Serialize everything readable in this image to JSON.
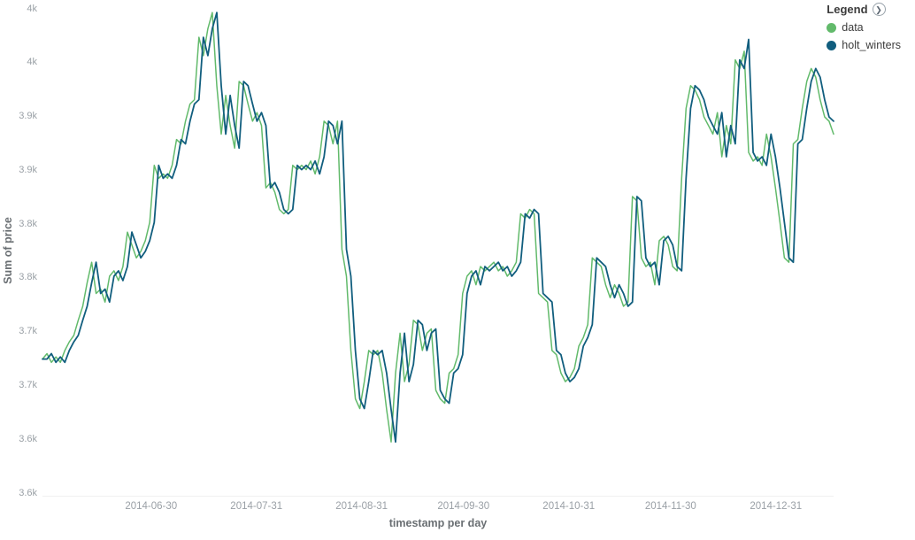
{
  "legend": {
    "title": "Legend",
    "toggle_icon": "❯",
    "items": [
      {
        "label": "data",
        "color": "#62BA6B"
      },
      {
        "label": "holt_winters",
        "color": "#115E7E"
      }
    ]
  },
  "chart_data": {
    "type": "line",
    "title": "",
    "xlabel": "timestamp per day",
    "ylabel": "Sum of price",
    "grid": false,
    "legend_position": "top-right",
    "ylim": [
      3548,
      4007
    ],
    "x_range": {
      "start": "2014-05-29",
      "end": "2015-01-17"
    },
    "x_ticks": [
      "2014-06-30",
      "2014-07-31",
      "2014-08-31",
      "2014-09-30",
      "2014-10-31",
      "2014-11-30",
      "2014-12-31"
    ],
    "y_ticks": [
      {
        "value": 4000,
        "label": "4k"
      },
      {
        "value": 3950,
        "label": "4k"
      },
      {
        "value": 3900,
        "label": "3.9k"
      },
      {
        "value": 3850,
        "label": "3.9k"
      },
      {
        "value": 3800,
        "label": "3.8k"
      },
      {
        "value": 3750,
        "label": "3.8k"
      },
      {
        "value": 3700,
        "label": "3.7k"
      },
      {
        "value": 3650,
        "label": "3.7k"
      },
      {
        "value": 3600,
        "label": "3.6k"
      },
      {
        "value": 3550,
        "label": "3.6k"
      }
    ],
    "series": [
      {
        "name": "data",
        "color": "#62BA6B",
        "stroke_width": 1.5,
        "values": [
          3675,
          3680,
          3672,
          3677,
          3672,
          3683,
          3691,
          3697,
          3711,
          3724,
          3746,
          3765,
          3736,
          3740,
          3728,
          3752,
          3757,
          3748,
          3761,
          3793,
          3781,
          3769,
          3775,
          3785,
          3802,
          3855,
          3843,
          3847,
          3843,
          3855,
          3879,
          3875,
          3896,
          3912,
          3916,
          3974,
          3957,
          3982,
          3997,
          3929,
          3884,
          3920,
          3892,
          3871,
          3933,
          3929,
          3912,
          3896,
          3904,
          3892,
          3834,
          3839,
          3830,
          3814,
          3810,
          3814,
          3855,
          3851,
          3855,
          3851,
          3859,
          3847,
          3863,
          3896,
          3892,
          3875,
          3896,
          3777,
          3752,
          3683,
          3638,
          3629,
          3654,
          3683,
          3679,
          3683,
          3662,
          3628,
          3598,
          3662,
          3699,
          3654,
          3670,
          3711,
          3707,
          3683,
          3699,
          3703,
          3646,
          3638,
          3634,
          3662,
          3666,
          3679,
          3736,
          3752,
          3757,
          3744,
          3761,
          3757,
          3761,
          3765,
          3757,
          3761,
          3752,
          3757,
          3765,
          3810,
          3806,
          3814,
          3810,
          3736,
          3732,
          3728,
          3683,
          3679,
          3662,
          3654,
          3658,
          3666,
          3687,
          3695,
          3707,
          3769,
          3765,
          3761,
          3744,
          3732,
          3744,
          3736,
          3724,
          3728,
          3826,
          3822,
          3769,
          3761,
          3765,
          3744,
          3785,
          3789,
          3781,
          3761,
          3757,
          3843,
          3908,
          3929,
          3925,
          3916,
          3900,
          3892,
          3884,
          3904,
          3863,
          3892,
          3875,
          3953,
          3945,
          3961,
          3867,
          3859,
          3863,
          3855,
          3884,
          3863,
          3834,
          3802,
          3769,
          3765,
          3875,
          3879,
          3908,
          3933,
          3945,
          3937,
          3916,
          3900,
          3896,
          3884
        ]
      },
      {
        "name": "holt_winters",
        "color": "#115E7E",
        "stroke_width": 1.8,
        "values": [
          3675,
          3675,
          3680,
          3672,
          3677,
          3672,
          3683,
          3691,
          3697,
          3711,
          3724,
          3746,
          3765,
          3736,
          3740,
          3728,
          3752,
          3757,
          3748,
          3761,
          3793,
          3781,
          3769,
          3775,
          3785,
          3802,
          3855,
          3843,
          3847,
          3843,
          3855,
          3879,
          3875,
          3896,
          3912,
          3916,
          3974,
          3957,
          3982,
          3997,
          3929,
          3884,
          3920,
          3892,
          3871,
          3933,
          3929,
          3912,
          3896,
          3904,
          3892,
          3834,
          3839,
          3830,
          3814,
          3810,
          3814,
          3855,
          3851,
          3855,
          3851,
          3859,
          3847,
          3863,
          3896,
          3892,
          3875,
          3896,
          3777,
          3752,
          3683,
          3638,
          3629,
          3654,
          3683,
          3679,
          3683,
          3662,
          3628,
          3598,
          3662,
          3699,
          3654,
          3670,
          3711,
          3707,
          3683,
          3699,
          3703,
          3646,
          3638,
          3634,
          3662,
          3666,
          3679,
          3736,
          3752,
          3757,
          3744,
          3761,
          3757,
          3761,
          3765,
          3757,
          3761,
          3752,
          3757,
          3765,
          3810,
          3806,
          3814,
          3810,
          3736,
          3732,
          3728,
          3683,
          3679,
          3662,
          3654,
          3658,
          3666,
          3687,
          3695,
          3707,
          3769,
          3765,
          3761,
          3744,
          3732,
          3744,
          3736,
          3724,
          3728,
          3826,
          3822,
          3769,
          3761,
          3765,
          3744,
          3785,
          3789,
          3781,
          3761,
          3757,
          3843,
          3908,
          3929,
          3925,
          3916,
          3900,
          3892,
          3884,
          3904,
          3863,
          3892,
          3875,
          3953,
          3945,
          3972,
          3867,
          3859,
          3863,
          3855,
          3884,
          3863,
          3834,
          3802,
          3769,
          3765,
          3875,
          3879,
          3908,
          3933,
          3945,
          3937,
          3916,
          3900,
          3896
        ]
      }
    ]
  }
}
